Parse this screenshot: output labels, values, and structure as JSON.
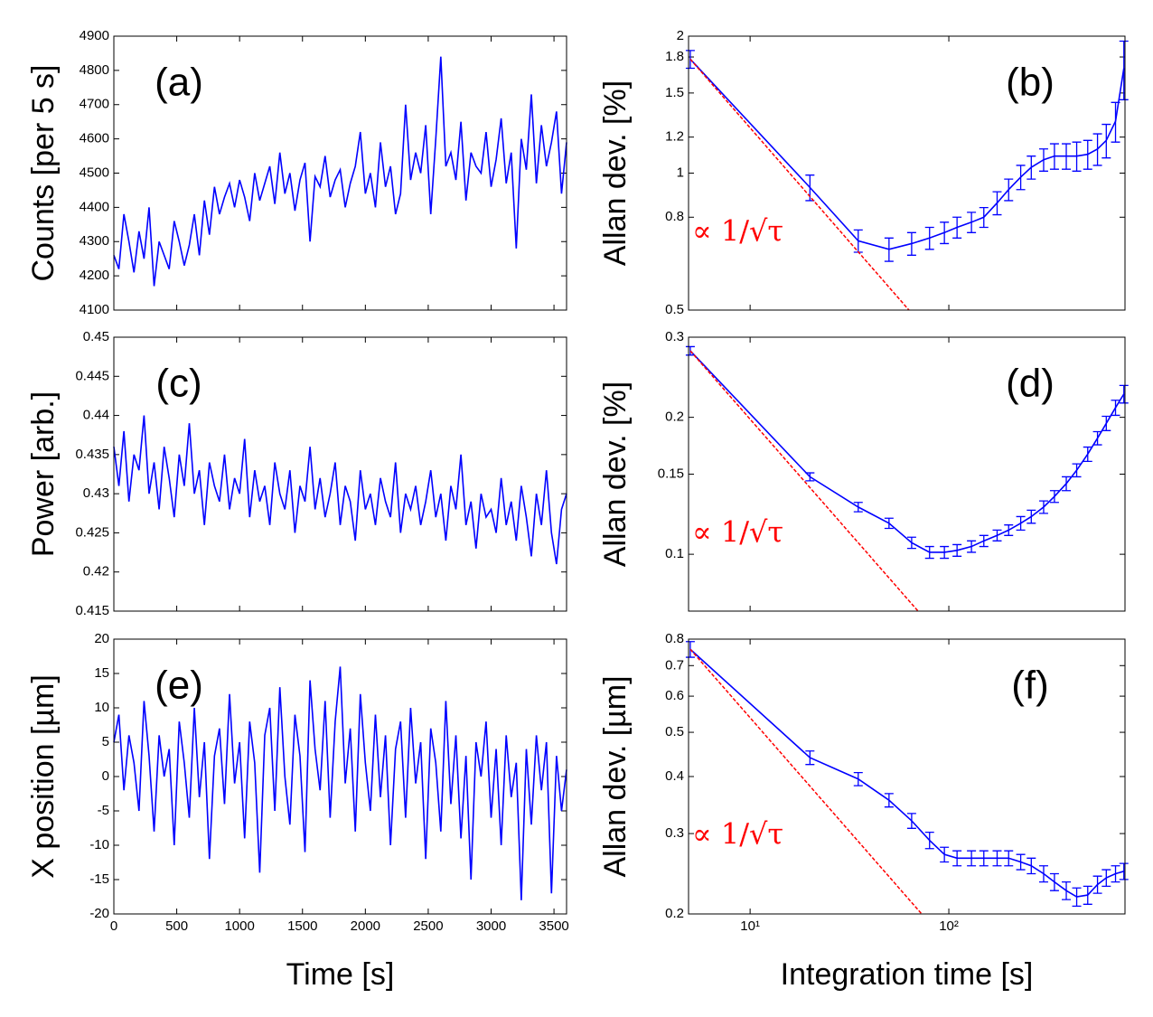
{
  "chart_data": [
    {
      "type": "line",
      "panel_label": "(a)",
      "ylabel": "Counts  [per 5 s]",
      "x": [
        0,
        40,
        80,
        120,
        160,
        200,
        240,
        280,
        320,
        360,
        400,
        440,
        480,
        520,
        560,
        600,
        640,
        680,
        720,
        760,
        800,
        840,
        880,
        920,
        960,
        1000,
        1040,
        1080,
        1120,
        1160,
        1200,
        1240,
        1280,
        1320,
        1360,
        1400,
        1440,
        1480,
        1520,
        1560,
        1600,
        1640,
        1680,
        1720,
        1760,
        1800,
        1840,
        1880,
        1920,
        1960,
        2000,
        2040,
        2080,
        2120,
        2160,
        2200,
        2240,
        2280,
        2320,
        2360,
        2400,
        2440,
        2480,
        2520,
        2560,
        2600,
        2640,
        2680,
        2720,
        2760,
        2800,
        2840,
        2880,
        2920,
        2960,
        3000,
        3040,
        3080,
        3120,
        3160,
        3200,
        3240,
        3280,
        3320,
        3360,
        3400,
        3440,
        3480,
        3520,
        3560,
        3600
      ],
      "series": [
        {
          "color": "#0000ff",
          "values": [
            4260,
            4220,
            4380,
            4300,
            4210,
            4330,
            4250,
            4400,
            4170,
            4300,
            4260,
            4220,
            4360,
            4300,
            4230,
            4290,
            4380,
            4260,
            4420,
            4320,
            4460,
            4380,
            4430,
            4470,
            4400,
            4480,
            4430,
            4360,
            4500,
            4420,
            4470,
            4520,
            4410,
            4560,
            4440,
            4500,
            4390,
            4480,
            4530,
            4300,
            4490,
            4460,
            4550,
            4430,
            4480,
            4510,
            4400,
            4470,
            4520,
            4620,
            4440,
            4500,
            4400,
            4590,
            4460,
            4520,
            4380,
            4440,
            4700,
            4480,
            4560,
            4500,
            4640,
            4380,
            4600,
            4840,
            4520,
            4560,
            4480,
            4650,
            4420,
            4560,
            4520,
            4500,
            4620,
            4460,
            4540,
            4660,
            4470,
            4560,
            4280,
            4600,
            4510,
            4730,
            4470,
            4640,
            4520,
            4590,
            4680,
            4440,
            4590
          ]
        }
      ],
      "xlim": [
        0,
        3600
      ],
      "ylim": [
        4100,
        4900
      ],
      "yticks": [
        4100,
        4200,
        4300,
        4400,
        4500,
        4600,
        4700,
        4800,
        4900
      ]
    },
    {
      "type": "line",
      "panel_label": "(b)",
      "ylabel": "Allan dev.  [%]",
      "annotation": "∝ 1/√τ",
      "xscale": "log",
      "yscale": "log",
      "x": [
        5,
        20,
        35,
        50,
        65,
        80,
        95,
        110,
        130,
        150,
        175,
        200,
        230,
        260,
        300,
        340,
        390,
        440,
        500,
        560,
        620,
        690,
        760
      ],
      "series": [
        {
          "color": "#0000ff",
          "values": [
            1.78,
            0.93,
            0.71,
            0.68,
            0.7,
            0.72,
            0.74,
            0.76,
            0.78,
            0.8,
            0.86,
            0.92,
            0.98,
            1.03,
            1.07,
            1.09,
            1.09,
            1.09,
            1.1,
            1.13,
            1.18,
            1.3,
            1.7
          ],
          "errors": [
            0.08,
            0.06,
            0.04,
            0.04,
            0.04,
            0.04,
            0.04,
            0.04,
            0.04,
            0.04,
            0.05,
            0.05,
            0.06,
            0.06,
            0.06,
            0.07,
            0.07,
            0.08,
            0.08,
            0.09,
            0.1,
            0.13,
            0.25
          ]
        },
        {
          "color": "#ff0000",
          "dashed": true,
          "x": [
            5,
            63
          ],
          "values": [
            1.78,
            0.5
          ]
        }
      ],
      "xlim": [
        4.9,
        770
      ],
      "ylim": [
        0.5,
        2
      ],
      "yticks": [
        0.5,
        0.8,
        1,
        1.2,
        1.5,
        1.8,
        2
      ]
    },
    {
      "type": "line",
      "panel_label": "(c)",
      "ylabel": "Power  [arb.]",
      "x": [
        0,
        40,
        80,
        120,
        160,
        200,
        240,
        280,
        320,
        360,
        400,
        440,
        480,
        520,
        560,
        600,
        640,
        680,
        720,
        760,
        800,
        840,
        880,
        920,
        960,
        1000,
        1040,
        1080,
        1120,
        1160,
        1200,
        1240,
        1280,
        1320,
        1360,
        1400,
        1440,
        1480,
        1520,
        1560,
        1600,
        1640,
        1680,
        1720,
        1760,
        1800,
        1840,
        1880,
        1920,
        1960,
        2000,
        2040,
        2080,
        2120,
        2160,
        2200,
        2240,
        2280,
        2320,
        2360,
        2400,
        2440,
        2480,
        2520,
        2560,
        2600,
        2640,
        2680,
        2720,
        2760,
        2800,
        2840,
        2880,
        2920,
        2960,
        3000,
        3040,
        3080,
        3120,
        3160,
        3200,
        3240,
        3280,
        3320,
        3360,
        3400,
        3440,
        3480,
        3520,
        3560,
        3600
      ],
      "series": [
        {
          "color": "#0000ff",
          "values": [
            0.436,
            0.431,
            0.438,
            0.429,
            0.435,
            0.433,
            0.44,
            0.43,
            0.434,
            0.428,
            0.436,
            0.432,
            0.427,
            0.435,
            0.431,
            0.439,
            0.43,
            0.433,
            0.426,
            0.434,
            0.431,
            0.429,
            0.435,
            0.428,
            0.432,
            0.43,
            0.437,
            0.427,
            0.433,
            0.429,
            0.431,
            0.426,
            0.434,
            0.43,
            0.428,
            0.433,
            0.425,
            0.431,
            0.429,
            0.436,
            0.428,
            0.432,
            0.427,
            0.43,
            0.434,
            0.426,
            0.431,
            0.429,
            0.424,
            0.433,
            0.428,
            0.43,
            0.426,
            0.432,
            0.429,
            0.427,
            0.434,
            0.425,
            0.43,
            0.428,
            0.431,
            0.426,
            0.429,
            0.433,
            0.427,
            0.43,
            0.424,
            0.431,
            0.428,
            0.435,
            0.426,
            0.429,
            0.423,
            0.43,
            0.427,
            0.428,
            0.425,
            0.432,
            0.426,
            0.429,
            0.424,
            0.431,
            0.427,
            0.422,
            0.43,
            0.426,
            0.433,
            0.425,
            0.421,
            0.428,
            0.43
          ]
        }
      ],
      "xlim": [
        0,
        3600
      ],
      "ylim": [
        0.415,
        0.45
      ],
      "yticks": [
        0.415,
        0.42,
        0.425,
        0.43,
        0.435,
        0.44,
        0.445,
        0.45
      ]
    },
    {
      "type": "line",
      "panel_label": "(d)",
      "ylabel": "Allan dev.  [%]",
      "annotation": "∝ 1/√τ",
      "xscale": "log",
      "yscale": "log",
      "x": [
        5,
        20,
        35,
        50,
        65,
        80,
        95,
        110,
        130,
        150,
        175,
        200,
        230,
        260,
        300,
        340,
        390,
        440,
        500,
        560,
        620,
        690,
        760
      ],
      "series": [
        {
          "color": "#0000ff",
          "values": [
            0.28,
            0.148,
            0.127,
            0.117,
            0.106,
            0.101,
            0.101,
            0.102,
            0.104,
            0.107,
            0.11,
            0.113,
            0.117,
            0.121,
            0.127,
            0.134,
            0.143,
            0.153,
            0.166,
            0.18,
            0.194,
            0.21,
            0.225
          ],
          "errors": [
            0.006,
            0.003,
            0.003,
            0.003,
            0.003,
            0.003,
            0.003,
            0.003,
            0.003,
            0.003,
            0.003,
            0.003,
            0.004,
            0.004,
            0.004,
            0.004,
            0.005,
            0.005,
            0.006,
            0.006,
            0.007,
            0.008,
            0.01
          ]
        },
        {
          "color": "#ff0000",
          "dashed": true,
          "x": [
            5,
            70
          ],
          "values": [
            0.28,
            0.075
          ]
        }
      ],
      "xlim": [
        4.9,
        770
      ],
      "ylim": [
        0.075,
        0.3
      ],
      "yticks": [
        0.1,
        0.15,
        0.2,
        0.3
      ]
    },
    {
      "type": "line",
      "panel_label": "(e)",
      "ylabel": "X position  [µm]",
      "xlabel": "Time  [s]",
      "x": [
        0,
        40,
        80,
        120,
        160,
        200,
        240,
        280,
        320,
        360,
        400,
        440,
        480,
        520,
        560,
        600,
        640,
        680,
        720,
        760,
        800,
        840,
        880,
        920,
        960,
        1000,
        1040,
        1080,
        1120,
        1160,
        1200,
        1240,
        1280,
        1320,
        1360,
        1400,
        1440,
        1480,
        1520,
        1560,
        1600,
        1640,
        1680,
        1720,
        1760,
        1800,
        1840,
        1880,
        1920,
        1960,
        2000,
        2040,
        2080,
        2120,
        2160,
        2200,
        2240,
        2280,
        2320,
        2360,
        2400,
        2440,
        2480,
        2520,
        2560,
        2600,
        2640,
        2680,
        2720,
        2760,
        2800,
        2840,
        2880,
        2920,
        2960,
        3000,
        3040,
        3080,
        3120,
        3160,
        3200,
        3240,
        3280,
        3320,
        3360,
        3400,
        3440,
        3480,
        3520,
        3560,
        3600
      ],
      "series": [
        {
          "color": "#0000ff",
          "values": [
            5,
            9,
            -2,
            6,
            2,
            -5,
            11,
            3,
            -8,
            6,
            0,
            4,
            -10,
            8,
            2,
            -6,
            10,
            -3,
            5,
            -12,
            3,
            7,
            -4,
            12,
            -1,
            5,
            -9,
            8,
            2,
            -14,
            6,
            10,
            -5,
            13,
            0,
            -7,
            9,
            3,
            -11,
            14,
            4,
            -2,
            11,
            -6,
            8,
            16,
            -1,
            7,
            -8,
            12,
            2,
            -5,
            9,
            -3,
            6,
            -10,
            4,
            8,
            -6,
            10,
            -1,
            5,
            -12,
            7,
            2,
            -8,
            11,
            -4,
            6,
            -9,
            3,
            -15,
            5,
            0,
            8,
            -6,
            4,
            -10,
            6,
            -3,
            2,
            -18,
            4,
            -7,
            6,
            -2,
            5,
            -17,
            3,
            -5,
            1
          ]
        }
      ],
      "xlim": [
        0,
        3600
      ],
      "xticks": [
        0,
        500,
        1000,
        1500,
        2000,
        2500,
        3000,
        3500
      ],
      "ylim": [
        -20,
        20
      ],
      "yticks": [
        -20,
        -15,
        -10,
        -5,
        0,
        5,
        10,
        15,
        20
      ]
    },
    {
      "type": "line",
      "panel_label": "(f)",
      "ylabel": "Allan dev.  [µm]",
      "xlabel": "Integration time [s]",
      "annotation": "∝ 1/√τ",
      "xscale": "log",
      "yscale": "log",
      "x": [
        5,
        20,
        35,
        50,
        65,
        80,
        95,
        110,
        130,
        150,
        175,
        200,
        230,
        260,
        300,
        340,
        390,
        440,
        500,
        560,
        620,
        690,
        760
      ],
      "series": [
        {
          "color": "#0000ff",
          "values": [
            0.76,
            0.44,
            0.395,
            0.355,
            0.32,
            0.29,
            0.27,
            0.265,
            0.265,
            0.265,
            0.265,
            0.265,
            0.26,
            0.255,
            0.245,
            0.235,
            0.225,
            0.218,
            0.22,
            0.232,
            0.24,
            0.245,
            0.248
          ],
          "errors": [
            0.03,
            0.015,
            0.013,
            0.012,
            0.012,
            0.012,
            0.01,
            0.01,
            0.01,
            0.01,
            0.01,
            0.01,
            0.01,
            0.01,
            0.01,
            0.01,
            0.01,
            0.01,
            0.01,
            0.01,
            0.01,
            0.01,
            0.01
          ]
        },
        {
          "color": "#ff0000",
          "dashed": true,
          "x": [
            5,
            73
          ],
          "values": [
            0.76,
            0.2
          ]
        }
      ],
      "xlim": [
        4.9,
        770
      ],
      "xticks": [
        {
          "value": 10,
          "label": "10¹"
        },
        {
          "value": 100,
          "label": "10²"
        }
      ],
      "ylim": [
        0.2,
        0.8
      ],
      "yticks": [
        0.2,
        0.3,
        0.4,
        0.5,
        0.6,
        0.7,
        0.8
      ]
    }
  ]
}
